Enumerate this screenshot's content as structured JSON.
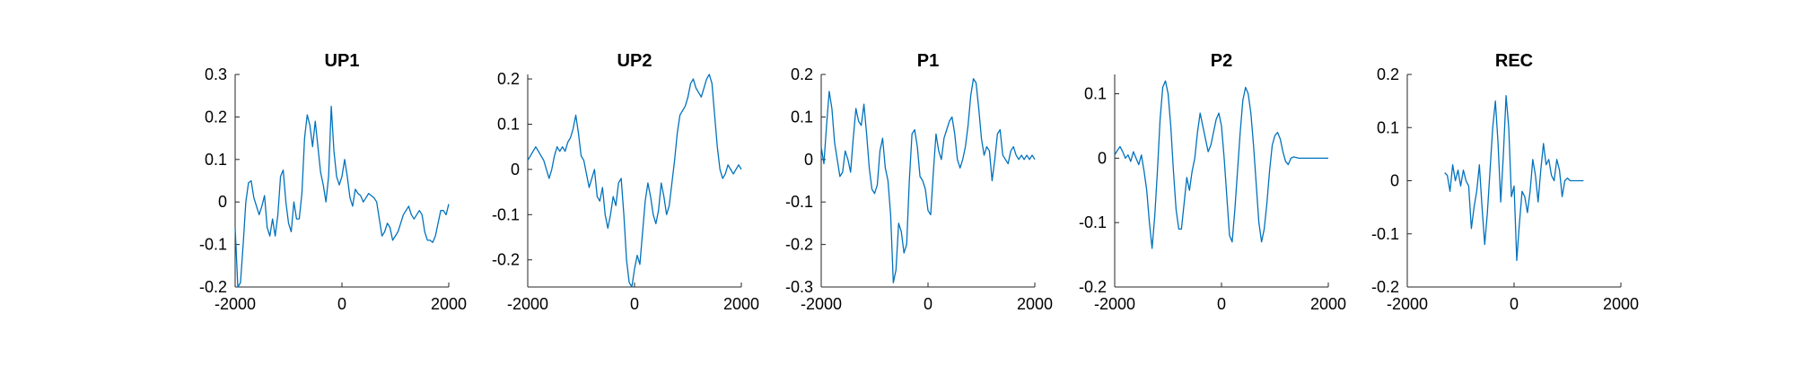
{
  "chart_data": [
    {
      "type": "line",
      "title": "UP1",
      "xlim": [
        -2000,
        2000
      ],
      "ylim": [
        -0.2,
        0.3
      ],
      "xticks": [
        -2000,
        0,
        2000
      ],
      "yticks": [
        -0.2,
        -0.1,
        0,
        0.1,
        0.2,
        0.3
      ],
      "xtick_labels": [
        "-2000",
        "0",
        "2000"
      ],
      "ytick_labels": [
        "-0.2",
        "-0.1",
        "0",
        "0.1",
        "0.2",
        "0.3"
      ],
      "grid": false,
      "color": "#0072BD",
      "x": [
        -2000,
        -1950,
        -1900,
        -1850,
        -1800,
        -1750,
        -1700,
        -1650,
        -1600,
        -1550,
        -1500,
        -1450,
        -1400,
        -1350,
        -1300,
        -1250,
        -1200,
        -1150,
        -1100,
        -1050,
        -1000,
        -950,
        -900,
        -850,
        -800,
        -750,
        -700,
        -650,
        -600,
        -550,
        -500,
        -450,
        -400,
        -350,
        -300,
        -250,
        -200,
        -150,
        -100,
        -50,
        0,
        50,
        100,
        150,
        200,
        250,
        300,
        350,
        400,
        450,
        500,
        550,
        600,
        650,
        700,
        750,
        800,
        850,
        900,
        950,
        1000,
        1050,
        1100,
        1150,
        1200,
        1250,
        1300,
        1350,
        1400,
        1450,
        1500,
        1550,
        1600,
        1650,
        1700,
        1750,
        1800,
        1850,
        1900,
        1950,
        2000
      ],
      "y": [
        -0.06,
        -0.2,
        -0.19,
        -0.1,
        0.0,
        0.045,
        0.05,
        0.01,
        -0.01,
        -0.03,
        -0.01,
        0.015,
        -0.06,
        -0.08,
        -0.04,
        -0.08,
        -0.03,
        0.06,
        0.075,
        0.0,
        -0.05,
        -0.07,
        0.0,
        -0.04,
        -0.04,
        0.02,
        0.15,
        0.205,
        0.18,
        0.13,
        0.19,
        0.13,
        0.07,
        0.04,
        0.0,
        0.06,
        0.225,
        0.12,
        0.06,
        0.04,
        0.06,
        0.1,
        0.06,
        0.01,
        -0.01,
        0.03,
        0.02,
        0.015,
        0.0,
        0.01,
        0.02,
        0.015,
        0.01,
        0.0,
        -0.04,
        -0.08,
        -0.07,
        -0.05,
        -0.06,
        -0.09,
        -0.08,
        -0.07,
        -0.05,
        -0.03,
        -0.02,
        -0.01,
        -0.03,
        -0.04,
        -0.03,
        -0.02,
        -0.03,
        -0.07,
        -0.09,
        -0.09,
        -0.095,
        -0.08,
        -0.05,
        -0.02,
        -0.02,
        -0.03,
        -0.005
      ]
    },
    {
      "type": "line",
      "title": "UP2",
      "xlim": [
        -2000,
        2000
      ],
      "ylim": [
        -0.26,
        0.21
      ],
      "xticks": [
        -2000,
        0,
        2000
      ],
      "yticks": [
        -0.2,
        -0.1,
        0,
        0.1,
        0.2
      ],
      "xtick_labels": [
        "-2000",
        "0",
        "2000"
      ],
      "ytick_labels": [
        "-0.2",
        "-0.1",
        "0",
        "0.1",
        "0.2"
      ],
      "grid": false,
      "color": "#0072BD",
      "x": [
        -2000,
        -1950,
        -1900,
        -1850,
        -1800,
        -1750,
        -1700,
        -1650,
        -1600,
        -1550,
        -1500,
        -1450,
        -1400,
        -1350,
        -1300,
        -1250,
        -1200,
        -1150,
        -1100,
        -1050,
        -1000,
        -950,
        -900,
        -850,
        -800,
        -750,
        -700,
        -650,
        -600,
        -550,
        -500,
        -450,
        -400,
        -350,
        -300,
        -250,
        -200,
        -150,
        -100,
        -50,
        0,
        50,
        100,
        150,
        200,
        250,
        300,
        350,
        400,
        450,
        500,
        550,
        600,
        650,
        700,
        750,
        800,
        850,
        900,
        950,
        1000,
        1050,
        1100,
        1150,
        1200,
        1250,
        1300,
        1350,
        1400,
        1450,
        1500,
        1550,
        1600,
        1650,
        1700,
        1750,
        1800,
        1850,
        1900,
        1950,
        2000
      ],
      "y": [
        0.02,
        0.03,
        0.04,
        0.05,
        0.04,
        0.03,
        0.02,
        0.0,
        -0.02,
        0.0,
        0.03,
        0.05,
        0.04,
        0.05,
        0.04,
        0.06,
        0.07,
        0.09,
        0.12,
        0.08,
        0.03,
        0.02,
        -0.01,
        -0.04,
        -0.02,
        0.0,
        -0.06,
        -0.07,
        -0.04,
        -0.1,
        -0.13,
        -0.1,
        -0.06,
        -0.08,
        -0.03,
        -0.02,
        -0.1,
        -0.2,
        -0.25,
        -0.26,
        -0.22,
        -0.19,
        -0.21,
        -0.14,
        -0.07,
        -0.03,
        -0.06,
        -0.1,
        -0.12,
        -0.09,
        -0.03,
        -0.06,
        -0.1,
        -0.08,
        -0.03,
        0.02,
        0.08,
        0.12,
        0.13,
        0.14,
        0.16,
        0.19,
        0.2,
        0.18,
        0.17,
        0.16,
        0.18,
        0.2,
        0.21,
        0.19,
        0.12,
        0.05,
        0.0,
        -0.02,
        -0.01,
        0.01,
        0.0,
        -0.01,
        0.0,
        0.01,
        0.0
      ]
    },
    {
      "type": "line",
      "title": "P1",
      "xlim": [
        -2000,
        2000
      ],
      "ylim": [
        -0.3,
        0.2
      ],
      "xticks": [
        -2000,
        0,
        2000
      ],
      "yticks": [
        -0.3,
        -0.2,
        -0.1,
        0,
        0.1,
        0.2
      ],
      "xtick_labels": [
        "-2000",
        "0",
        "2000"
      ],
      "ytick_labels": [
        "-0.3",
        "-0.2",
        "-0.1",
        "0",
        "0.1",
        "0.2"
      ],
      "grid": false,
      "color": "#0072BD",
      "x": [
        -2000,
        -1950,
        -1900,
        -1850,
        -1800,
        -1750,
        -1700,
        -1650,
        -1600,
        -1550,
        -1500,
        -1450,
        -1400,
        -1350,
        -1300,
        -1250,
        -1200,
        -1150,
        -1100,
        -1050,
        -1000,
        -950,
        -900,
        -850,
        -800,
        -750,
        -700,
        -650,
        -600,
        -550,
        -500,
        -450,
        -400,
        -350,
        -300,
        -250,
        -200,
        -150,
        -100,
        -50,
        0,
        50,
        100,
        150,
        200,
        250,
        300,
        350,
        400,
        450,
        500,
        550,
        600,
        650,
        700,
        750,
        800,
        850,
        900,
        950,
        1000,
        1050,
        1100,
        1150,
        1200,
        1250,
        1300,
        1350,
        1400,
        1450,
        1500,
        1550,
        1600,
        1650,
        1700,
        1750,
        1800,
        1850,
        1900,
        1950,
        2000
      ],
      "y": [
        0.03,
        -0.01,
        0.08,
        0.16,
        0.12,
        0.04,
        0.0,
        -0.04,
        -0.03,
        0.02,
        0.0,
        -0.03,
        0.05,
        0.12,
        0.09,
        0.08,
        0.13,
        0.06,
        -0.02,
        -0.07,
        -0.08,
        -0.06,
        0.02,
        0.05,
        -0.02,
        -0.05,
        -0.13,
        -0.29,
        -0.26,
        -0.15,
        -0.17,
        -0.22,
        -0.2,
        -0.05,
        0.06,
        0.07,
        0.03,
        -0.04,
        -0.05,
        -0.07,
        -0.12,
        -0.13,
        -0.03,
        0.06,
        0.02,
        0.0,
        0.05,
        0.07,
        0.09,
        0.1,
        0.06,
        0.0,
        -0.02,
        0.0,
        0.03,
        0.08,
        0.15,
        0.19,
        0.18,
        0.12,
        0.05,
        0.01,
        0.03,
        0.02,
        -0.05,
        0.0,
        0.06,
        0.07,
        0.01,
        0.0,
        -0.01,
        0.02,
        0.03,
        0.01,
        0.0,
        0.01,
        0.0,
        0.01,
        0.0,
        0.01,
        0.0
      ]
    },
    {
      "type": "line",
      "title": "P2",
      "xlim": [
        -2000,
        2000
      ],
      "ylim": [
        -0.2,
        0.13
      ],
      "xticks": [
        -2000,
        0,
        2000
      ],
      "yticks": [
        -0.2,
        -0.1,
        0,
        0.1
      ],
      "xtick_labels": [
        "-2000",
        "0",
        "2000"
      ],
      "ytick_labels": [
        "-0.2",
        "-0.1",
        "0",
        "0.1"
      ],
      "grid": false,
      "color": "#0072BD",
      "x": [
        -2000,
        -1950,
        -1900,
        -1850,
        -1800,
        -1750,
        -1700,
        -1650,
        -1600,
        -1550,
        -1500,
        -1450,
        -1400,
        -1350,
        -1300,
        -1250,
        -1200,
        -1150,
        -1100,
        -1050,
        -1000,
        -950,
        -900,
        -850,
        -800,
        -750,
        -700,
        -650,
        -600,
        -550,
        -500,
        -450,
        -400,
        -350,
        -300,
        -250,
        -200,
        -150,
        -100,
        -50,
        0,
        50,
        100,
        150,
        200,
        250,
        300,
        350,
        400,
        450,
        500,
        550,
        600,
        650,
        700,
        750,
        800,
        850,
        900,
        950,
        1000,
        1050,
        1100,
        1150,
        1200,
        1250,
        1300,
        1350,
        1400,
        1450,
        1500,
        1550,
        1600,
        1650,
        1700,
        1750,
        1800,
        1850,
        1900,
        1950,
        2000
      ],
      "y": [
        0.005,
        0.012,
        0.018,
        0.01,
        0.0,
        0.005,
        -0.005,
        0.01,
        0.0,
        -0.01,
        0.005,
        -0.02,
        -0.05,
        -0.1,
        -0.14,
        -0.09,
        -0.02,
        0.06,
        0.11,
        0.12,
        0.1,
        0.05,
        -0.02,
        -0.08,
        -0.11,
        -0.11,
        -0.07,
        -0.03,
        -0.05,
        -0.02,
        0.0,
        0.04,
        0.07,
        0.05,
        0.03,
        0.01,
        0.02,
        0.04,
        0.06,
        0.07,
        0.05,
        0.0,
        -0.06,
        -0.12,
        -0.13,
        -0.08,
        -0.02,
        0.04,
        0.09,
        0.11,
        0.1,
        0.07,
        0.02,
        -0.04,
        -0.1,
        -0.13,
        -0.11,
        -0.07,
        -0.02,
        0.02,
        0.035,
        0.04,
        0.03,
        0.01,
        -0.005,
        -0.01,
        0.0,
        0.002,
        0.001,
        0.0,
        0.0,
        0.0,
        0.0,
        0.0,
        0.0,
        0.0,
        0.0,
        0.0,
        0.0,
        0.0,
        0.0
      ]
    },
    {
      "type": "line",
      "title": "REC",
      "xlim": [
        -2000,
        2000
      ],
      "ylim": [
        -0.2,
        0.2
      ],
      "xticks": [
        -2000,
        0,
        2000
      ],
      "yticks": [
        -0.2,
        -0.1,
        0,
        0.1,
        0.2
      ],
      "xtick_labels": [
        "-2000",
        "0",
        "2000"
      ],
      "ytick_labels": [
        "-0.2",
        "-0.1",
        "0",
        "0.1",
        "0.2"
      ],
      "grid": false,
      "color": "#0072BD",
      "x": [
        -1300,
        -1250,
        -1200,
        -1150,
        -1100,
        -1050,
        -1000,
        -950,
        -900,
        -850,
        -800,
        -750,
        -700,
        -650,
        -600,
        -550,
        -500,
        -450,
        -400,
        -350,
        -300,
        -250,
        -200,
        -150,
        -100,
        -50,
        0,
        50,
        100,
        150,
        200,
        250,
        300,
        350,
        400,
        450,
        500,
        550,
        600,
        650,
        700,
        750,
        800,
        850,
        900,
        950,
        1000,
        1050,
        1100,
        1150,
        1200,
        1250,
        1300
      ],
      "y": [
        0.015,
        0.01,
        -0.02,
        0.03,
        0.0,
        0.02,
        -0.01,
        0.02,
        0.0,
        -0.01,
        -0.09,
        -0.05,
        -0.02,
        0.03,
        -0.05,
        -0.12,
        -0.06,
        0.02,
        0.1,
        0.15,
        0.07,
        -0.04,
        0.05,
        0.16,
        0.1,
        -0.03,
        -0.01,
        -0.15,
        -0.08,
        -0.02,
        -0.03,
        -0.06,
        -0.02,
        0.04,
        0.01,
        -0.04,
        0.02,
        0.07,
        0.03,
        0.04,
        0.01,
        0.0,
        0.04,
        0.02,
        -0.03,
        0.0,
        0.005,
        0.0,
        0.0,
        0.0,
        0.0,
        0.0,
        0.0
      ]
    }
  ]
}
